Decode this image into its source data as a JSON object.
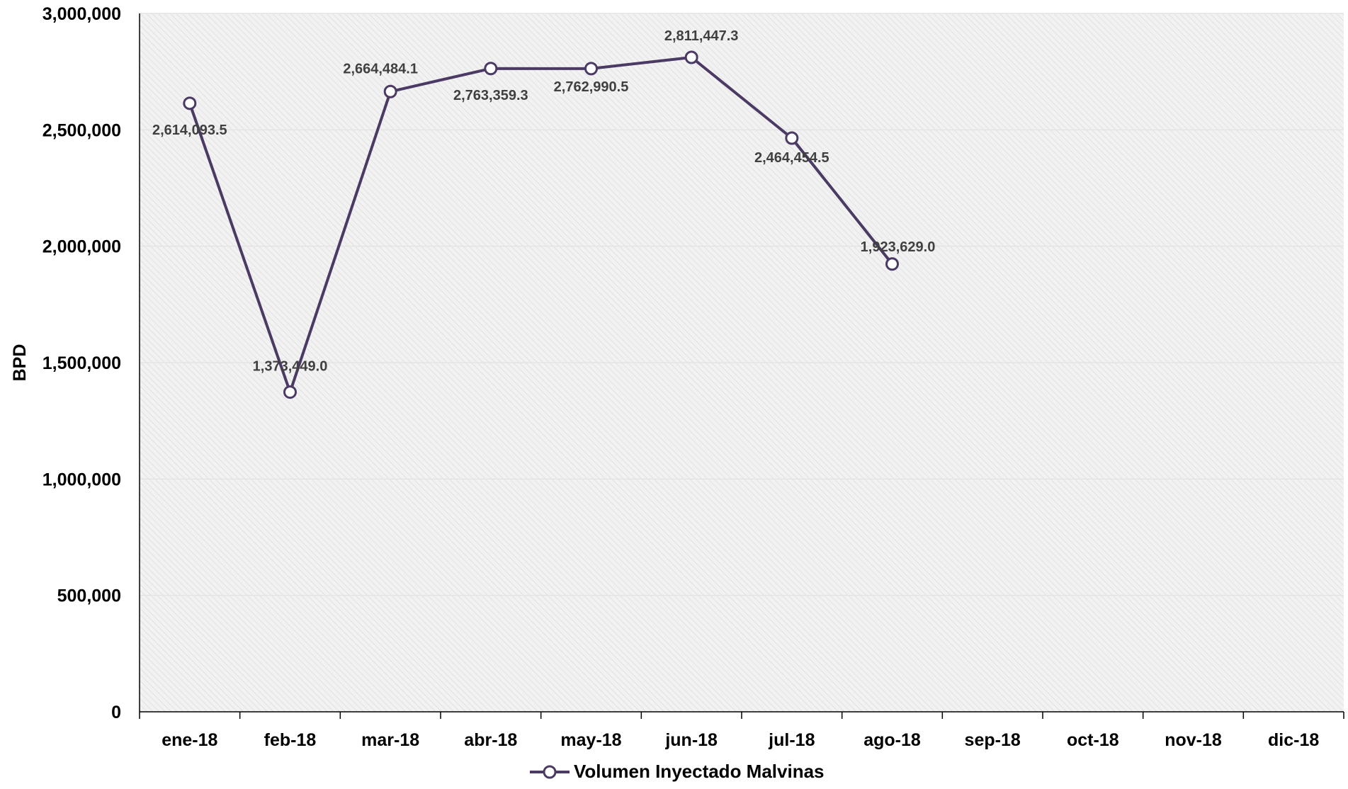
{
  "chart_data": {
    "type": "line",
    "title": "",
    "xlabel": "",
    "ylabel": "BPD",
    "categories": [
      "ene-18",
      "feb-18",
      "mar-18",
      "abr-18",
      "may-18",
      "jun-18",
      "jul-18",
      "ago-18",
      "sep-18",
      "oct-18",
      "nov-18",
      "dic-18"
    ],
    "ylim": [
      0,
      3000000
    ],
    "yticks": [
      0,
      500000,
      1000000,
      1500000,
      2000000,
      2500000,
      3000000
    ],
    "ytick_labels": [
      "0",
      "500,000",
      "1,000,000",
      "1,500,000",
      "2,000,000",
      "2,500,000",
      "3,000,000"
    ],
    "grid": true,
    "legend_position": "bottom",
    "series": [
      {
        "name": "Volumen Inyectado Malvinas",
        "color": "#4b3a63",
        "marker": "open-circle",
        "values": [
          2614093.5,
          1373449.0,
          2664484.1,
          2763359.3,
          2762990.5,
          2811447.3,
          2464454.5,
          1923629.0,
          null,
          null,
          null,
          null
        ],
        "data_labels": [
          "2,614,093.5",
          "1,373,449.0",
          "2,664,484.1",
          "2,763,359.3",
          "2,762,990.5",
          "2,811,447.3",
          "2,464,454.5",
          "1,923,629.0",
          null,
          null,
          null,
          null
        ]
      }
    ]
  }
}
